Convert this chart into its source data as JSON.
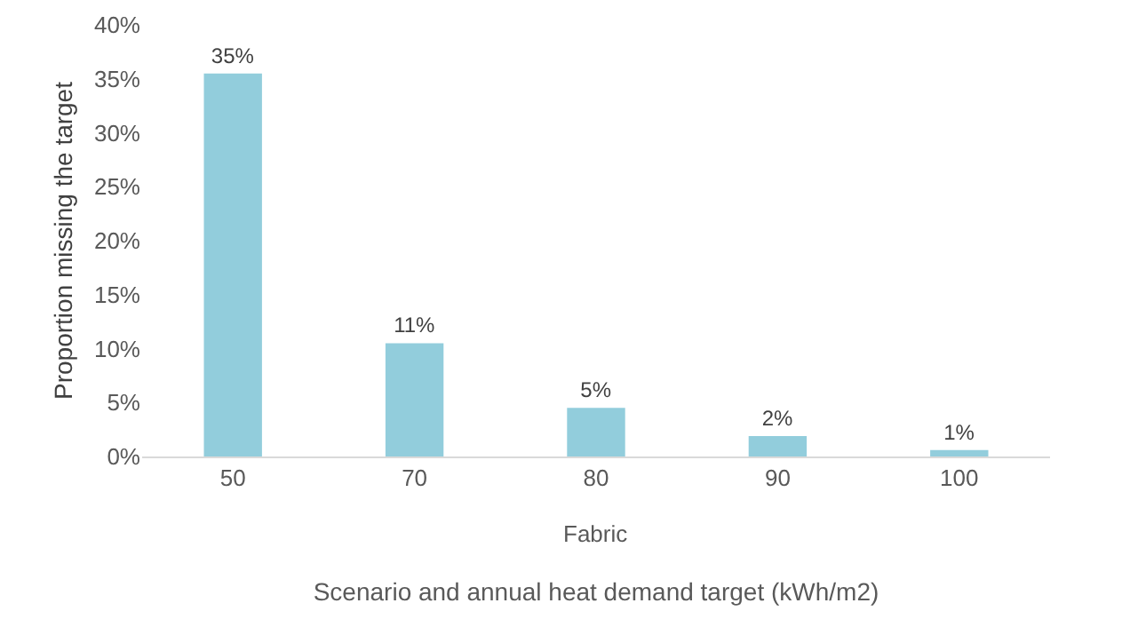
{
  "chart_data": {
    "type": "bar",
    "categories": [
      "50",
      "70",
      "80",
      "90",
      "100"
    ],
    "values": [
      35.5,
      10.5,
      4.5,
      1.9,
      0.6
    ],
    "value_labels": [
      "35%",
      "11%",
      "5%",
      "2%",
      "1%"
    ],
    "color": "#92cddc",
    "ylabel": "Proportion missing the target",
    "xlabel": "Scenario and annual heat demand target (kWh/m2)",
    "annotations": [
      "Fabric"
    ],
    "ylim": [
      0,
      40
    ],
    "yticks": [
      {
        "value": 0,
        "label": "0%"
      },
      {
        "value": 5,
        "label": "5%"
      },
      {
        "value": 10,
        "label": "10%"
      },
      {
        "value": 15,
        "label": "15%"
      },
      {
        "value": 20,
        "label": "20%"
      },
      {
        "value": 25,
        "label": "25%"
      },
      {
        "value": 30,
        "label": "30%"
      },
      {
        "value": 35,
        "label": "35%"
      },
      {
        "value": 40,
        "label": "40%"
      }
    ],
    "grid": false
  }
}
